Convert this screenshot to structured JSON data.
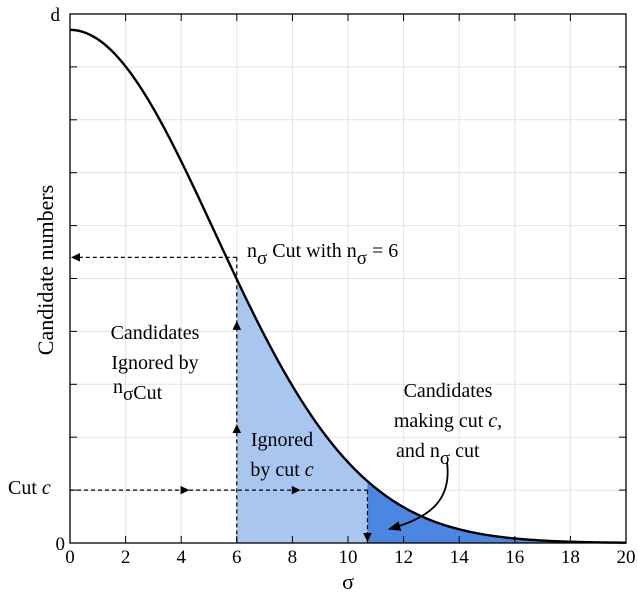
{
  "chart_data": {
    "type": "area",
    "x_ticks": [
      "0",
      "2",
      "4",
      "6",
      "8",
      "10",
      "12",
      "14",
      "16",
      "18",
      "20"
    ],
    "xlim": [
      0,
      20
    ],
    "ylim": [
      0,
      1
    ],
    "grid": true,
    "y_tick_labels": {
      "bottom": "0",
      "top": "d"
    },
    "xlabel": "σ",
    "ylabel": "Candidate numbers",
    "curve": {
      "shape": "gaussian",
      "peak_x": 0,
      "peak_y": 0.97,
      "sigma": 5.2,
      "color": "#000000"
    },
    "regions": [
      {
        "name": "ignored",
        "x_from": 6,
        "x_to": 10.7,
        "color": "#a8c6f0"
      },
      {
        "name": "kept",
        "x_from": 10.7,
        "x_to": 20,
        "color": "#4b86e0"
      }
    ],
    "markers": {
      "n_sigma_cut_x": 6,
      "n_sigma_cut_y": 0.54,
      "cut_c_x": 10.7,
      "cut_c_y": 0.1
    },
    "annotations": {
      "nsigma_cut": {
        "n": "n",
        "sub": "σ",
        "mid": " Cut with n",
        "sub2": "σ",
        "end": " = 6"
      },
      "ignored_by_nsigma": {
        "line1": "Candidates",
        "line2": "Ignored by",
        "n": "n",
        "sub": "σ",
        "tail": "Cut"
      },
      "ignored_by_cut": {
        "line1": "Ignored",
        "line2a": "by cut ",
        "line2b": "c"
      },
      "making_cut": {
        "line1": "Candidates",
        "line2a": "making cut ",
        "line2b": "c",
        "line2c": ",",
        "line3a": "and ",
        "n": "n",
        "sub": "σ",
        "line3b": " cut"
      },
      "cut_c_label": {
        "a": "Cut ",
        "b": "c"
      }
    }
  }
}
